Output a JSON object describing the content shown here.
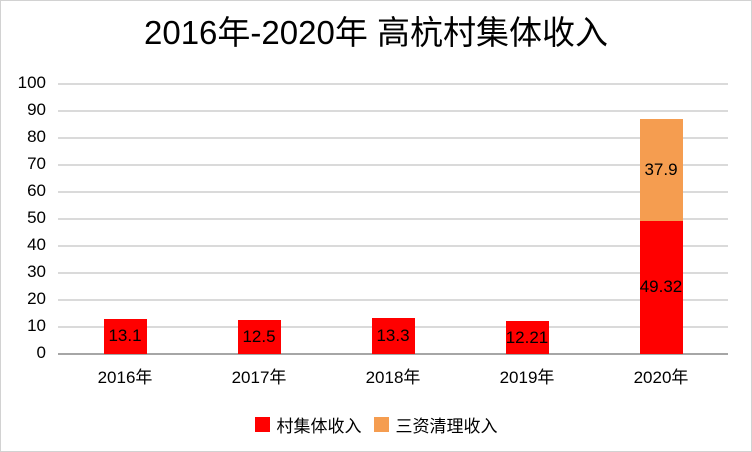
{
  "chart_data": {
    "type": "bar",
    "stacked": true,
    "title": "2016年-2020年 高杭村集体收入",
    "categories": [
      "2016年",
      "2017年",
      "2018年",
      "2019年",
      "2020年"
    ],
    "series": [
      {
        "name": "村集体收入",
        "color": "#FF0000",
        "values": [
          13.1,
          12.5,
          13.3,
          12.21,
          49.32
        ],
        "data_labels": [
          "13.1",
          "12.5",
          "13.3",
          "12.21",
          "49.32"
        ]
      },
      {
        "name": "三资清理收入",
        "color": "#F59D50",
        "values": [
          0,
          0,
          0,
          0,
          37.9
        ],
        "data_labels": [
          "",
          "",
          "",
          "",
          "37.9"
        ]
      }
    ],
    "xlabel": "",
    "ylabel": "",
    "ylim": [
      0,
      100
    ],
    "yticks": [
      0,
      10,
      20,
      30,
      40,
      50,
      60,
      70,
      80,
      90,
      100
    ],
    "grid": true,
    "legend_position": "bottom"
  },
  "style": {
    "background": "#FFFFFF",
    "border_color": "#D2D2D2",
    "gridline_color": "#DADADA",
    "baseline_color": "#A6A6A6",
    "text_color": "#000000"
  }
}
